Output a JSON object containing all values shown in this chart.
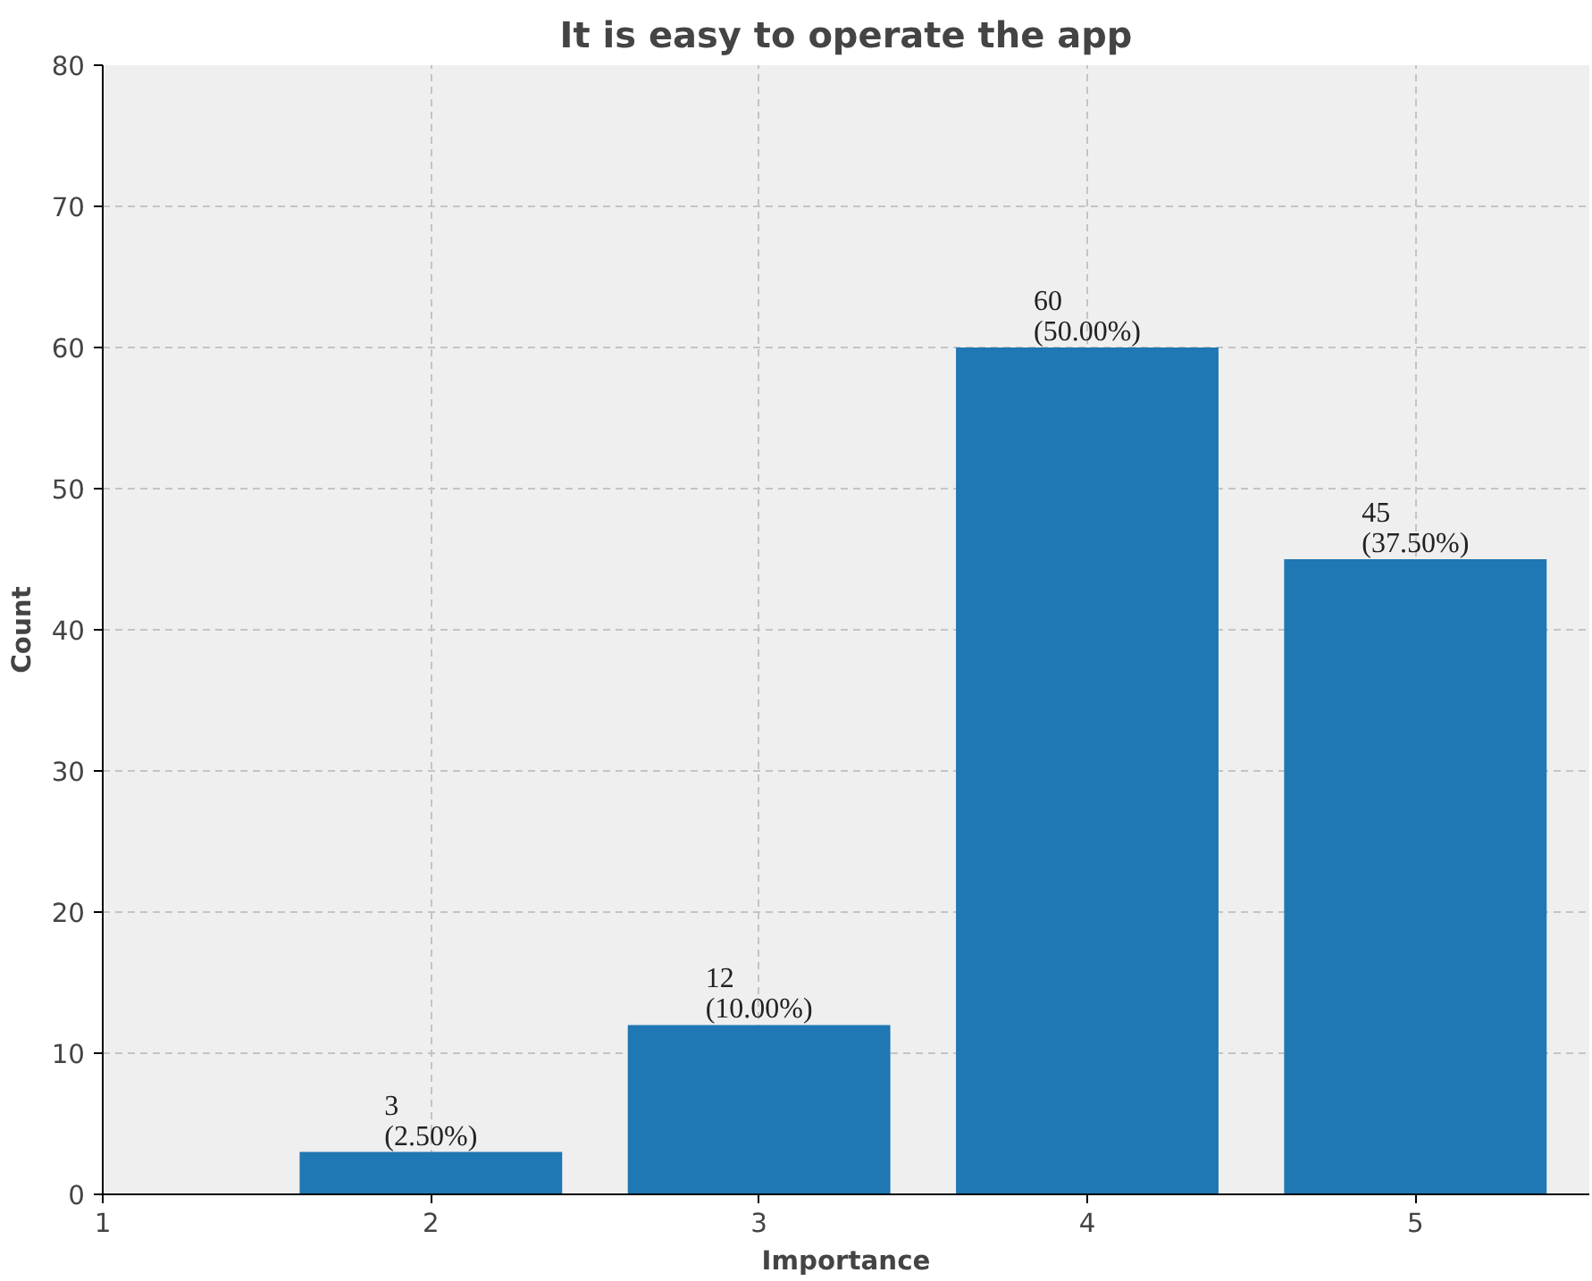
{
  "chart_data": {
    "type": "bar",
    "title": "It is easy to operate the app",
    "xlabel": "Importance",
    "ylabel": "Count",
    "x": [
      2,
      3,
      4,
      5
    ],
    "values": [
      3,
      12,
      60,
      45
    ],
    "color": "#1f77b4",
    "value_labels": [
      "3\n(2.50%)",
      "12\n(10.00%)",
      "60\n(50.00%)",
      "45\n(37.50%)"
    ],
    "xlim": [
      1,
      5.53
    ],
    "xticks": [
      1,
      2,
      3,
      4,
      5
    ],
    "ylim": [
      0,
      80
    ],
    "yticks": [
      0,
      10,
      20,
      30,
      40,
      50,
      60,
      70,
      80
    ],
    "grid": true
  }
}
